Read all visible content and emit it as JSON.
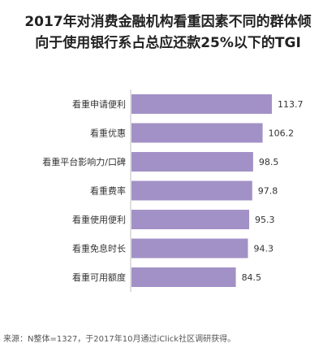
{
  "chart_data": {
    "type": "bar",
    "orientation": "horizontal",
    "title_lines": [
      "2017年对消费金融机构看重因素不同的群体倾",
      "向于使用银行系占总应还款25%以下的TGI"
    ],
    "categories": [
      "看重申请便利",
      "看重优惠",
      "看重平台影响力/口碑",
      "看重费率",
      "看重使用便利",
      "看重免息时长",
      "看重可用额度"
    ],
    "values": [
      113.7,
      106.2,
      98.5,
      97.8,
      95.3,
      94.3,
      84.5
    ],
    "value_labels": [
      "113.7",
      "106.2",
      "98.5",
      "97.8",
      "95.3",
      "94.3",
      "84.5"
    ],
    "bar_color": "#a291c6",
    "legend": "none",
    "grid": false
  },
  "footer": {
    "source": "来源：N整体=1327，于2017年10月通过iClick社区调研获得。"
  }
}
